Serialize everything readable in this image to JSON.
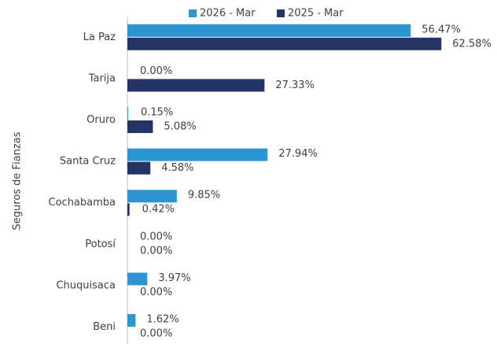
{
  "chart_data": {
    "type": "bar",
    "orientation": "horizontal",
    "y_axis_label": "Seguros de Fianzas",
    "categories": [
      "La Paz",
      "Tarija",
      "Oruro",
      "Santa Cruz",
      "Cochabamba",
      "Potosí",
      "Chuquisaca",
      "Beni"
    ],
    "series": [
      {
        "name": "2026 - Mar",
        "color": "#2e95d3",
        "values": [
          56.47,
          0.0,
          0.15,
          27.94,
          9.85,
          0.0,
          3.97,
          1.62
        ],
        "value_labels": [
          "56.47%",
          "0.00%",
          "0.15%",
          "27.94%",
          "9.85%",
          "0.00%",
          "3.97%",
          "1.62%"
        ]
      },
      {
        "name": "2025 - Mar",
        "color": "#253465",
        "values": [
          62.58,
          27.33,
          5.08,
          4.58,
          0.42,
          0.0,
          0.0,
          0.0
        ],
        "value_labels": [
          "62.58%",
          "27.33%",
          "5.08%",
          "4.58%",
          "0.42%",
          "0.00%",
          "0.00%",
          "0.00%"
        ]
      }
    ],
    "legend": "top"
  }
}
